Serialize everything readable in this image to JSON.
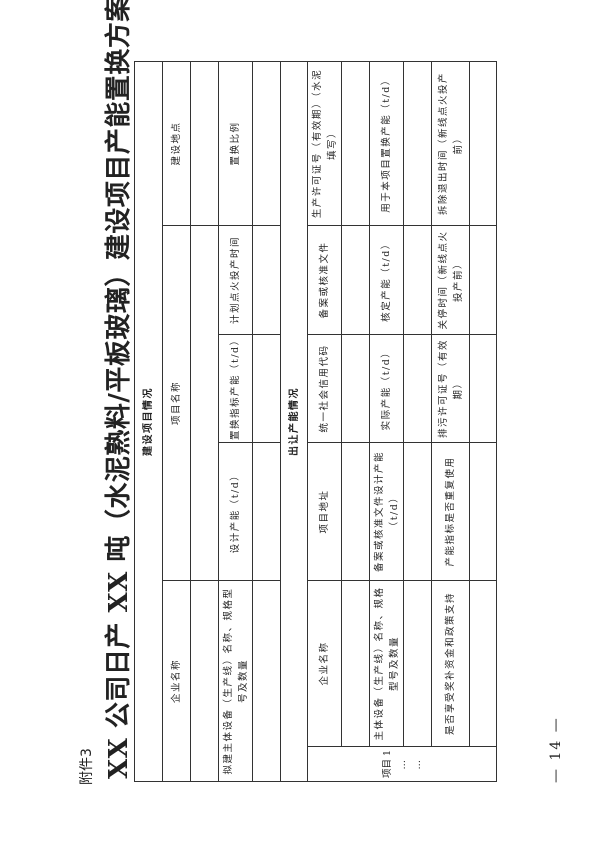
{
  "annex_label": "附件3",
  "title": "XX 公司日产 XX 吨（水泥熟料/平板玻璃）建设项目产能置换方案",
  "construction_section": {
    "heading": "建设项目情况",
    "row1": [
      "企业名称",
      "项目名称",
      "建设地点"
    ],
    "row2": [
      "拟建主体设备（生产线）名称、规格型号及数量",
      "设计产能（t/d）",
      "置换指标产能（t/d）",
      "计划点火投产时间",
      "置换比例"
    ]
  },
  "transfer_section": {
    "heading": "出让产能情况",
    "project_label": [
      "项目 1",
      "…",
      "…"
    ],
    "row1": [
      "企业名称",
      "项目地址",
      "统一社会信用代码",
      "备案或核准文件",
      "生产许可证号（有效期）（水泥填写）"
    ],
    "row2": [
      "主体设备（生产线）名称、规格型号及数量",
      "备案或核准文件设计产能（t/d）",
      "实际产能（t/d）",
      "核定产能（t/d）",
      "用于本项目置换产能（t/d）"
    ],
    "row3": [
      "是否享受奖补资金和政策支持",
      "产能指标是否重复使用",
      "排污许可证号（有效期）",
      "关停时间（新线点火投产前）",
      "拆除退出时间（新线点火投产前）"
    ]
  },
  "page_number": "— 14 —"
}
